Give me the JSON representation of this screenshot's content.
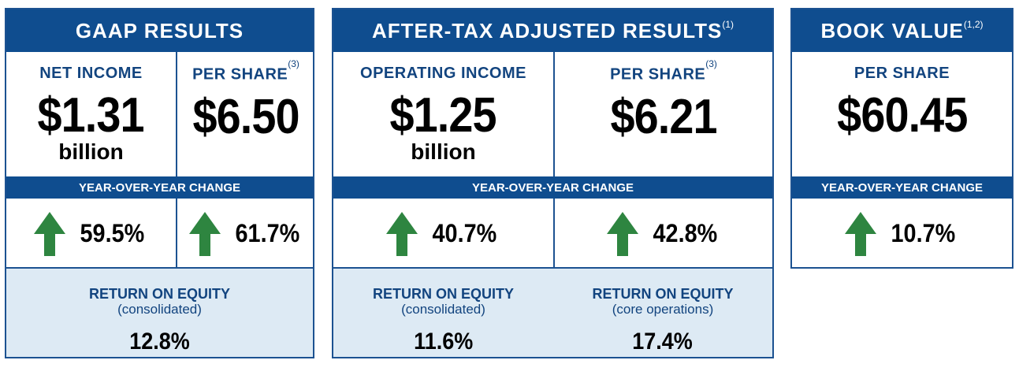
{
  "gaap": {
    "title": "GAAP RESULTS",
    "net_income_label": "NET INCOME",
    "net_income_value": "$1.31",
    "net_income_unit": "billion",
    "per_share_label": "PER SHARE",
    "per_share_note": "(3)",
    "per_share_value": "$6.50",
    "yoy_label": "YEAR-OVER-YEAR CHANGE",
    "net_income_change": "59.5%",
    "per_share_change": "61.7%",
    "roe_title": "RETURN ON EQUITY",
    "roe_sub": "(consolidated)",
    "roe_value": "12.8%"
  },
  "adjusted": {
    "title": "AFTER-TAX ADJUSTED RESULTS",
    "title_note": "(1)",
    "operating_label": "OPERATING INCOME",
    "operating_value": "$1.25",
    "operating_unit": "billion",
    "per_share_label": "PER SHARE",
    "per_share_note": "(3)",
    "per_share_value": "$6.21",
    "yoy_label": "YEAR-OVER-YEAR CHANGE",
    "operating_change": "40.7%",
    "per_share_change": "42.8%",
    "roe1_title": "RETURN ON EQUITY",
    "roe1_sub": "(consolidated)",
    "roe1_value": "11.6%",
    "roe2_title": "RETURN ON EQUITY",
    "roe2_sub": "(core operations)",
    "roe2_value": "17.4%"
  },
  "book": {
    "title": "BOOK VALUE",
    "title_note": "(1,2)",
    "per_share_label": "PER SHARE",
    "per_share_value": "$60.45",
    "yoy_label": "YEAR-OVER-YEAR CHANGE",
    "per_share_change": "10.7%"
  },
  "colors": {
    "navy": "#0f4d8f",
    "label_blue": "#12447f",
    "arrow_green": "#2e8540",
    "roe_bg": "#ddeaf4"
  },
  "icons": {
    "change": "up-arrow-icon"
  }
}
